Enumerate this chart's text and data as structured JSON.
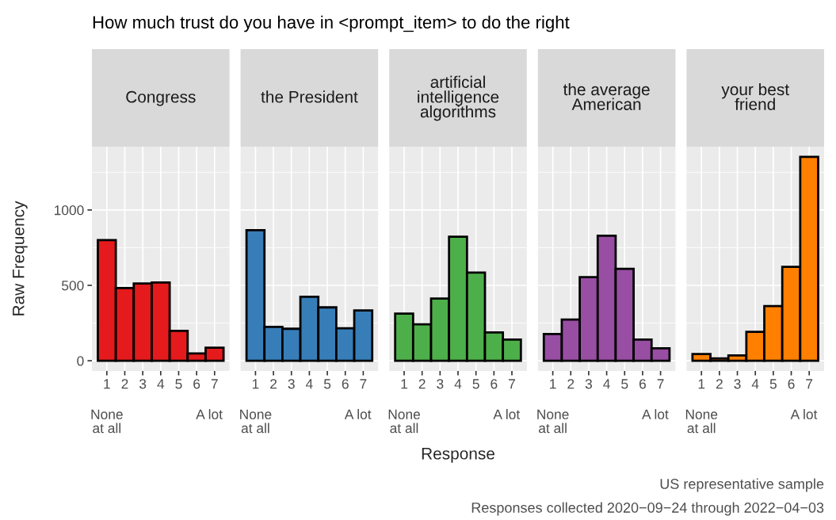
{
  "chart_data": [
    {
      "type": "bar",
      "subtitle": "How much trust do you have in <prompt_item> to do the right",
      "title": "Congress",
      "ylabel": "Raw Frequency",
      "categories": [
        "1",
        "2",
        "3",
        "4",
        "5",
        "6",
        "7"
      ],
      "values": [
        800,
        482,
        512,
        519,
        198,
        48,
        86
      ],
      "color": "#e41a1c",
      "ylim": [
        -68,
        1420
      ],
      "yticks": [
        0,
        500,
        1000
      ],
      "grid": true,
      "annotations": [
        "None\nat all",
        "A lot"
      ]
    },
    {
      "type": "bar",
      "title": "the President",
      "categories": [
        "1",
        "2",
        "3",
        "4",
        "5",
        "6",
        "7"
      ],
      "values": [
        866,
        225,
        212,
        424,
        354,
        215,
        333
      ],
      "color": "#377eb8",
      "ylim": [
        -68,
        1420
      ],
      "yticks": [
        0,
        500,
        1000
      ],
      "grid": true,
      "tick_labels": "x",
      "annotations": [
        "None\nat all",
        "A lot"
      ]
    },
    {
      "type": "bar",
      "title": "artificial\nintelligence\nalgorithms",
      "xlabel": "Response",
      "categories": [
        "1",
        "2",
        "3",
        "4",
        "5",
        "6",
        "7"
      ],
      "values": [
        313,
        242,
        412,
        823,
        585,
        188,
        140
      ],
      "color": "#4daf4a",
      "ylim": [
        -68,
        1420
      ],
      "yticks": [
        0,
        500,
        1000
      ],
      "grid": true,
      "tick_labels": "x",
      "annotations": [
        "None\nat all",
        "A lot"
      ]
    },
    {
      "type": "bar",
      "title": "the average\nAmerican",
      "categories": [
        "1",
        "2",
        "3",
        "4",
        "5",
        "6",
        "7"
      ],
      "values": [
        177,
        273,
        554,
        829,
        610,
        140,
        83
      ],
      "color": "#984ea3",
      "ylim": [
        -68,
        1420
      ],
      "yticks": [
        0,
        500,
        1000
      ],
      "grid": true,
      "tick_labels": "x",
      "annotations": [
        "None\nat all",
        "A lot"
      ]
    },
    {
      "type": "bar",
      "title": "your best\nfriend",
      "categories": [
        "1",
        "2",
        "3",
        "4",
        "5",
        "6",
        "7"
      ],
      "values": [
        44,
        15,
        35,
        192,
        362,
        623,
        1352
      ],
      "color": "#ff7f00",
      "ylim": [
        -68,
        1420
      ],
      "yticks": [
        0,
        500,
        1000
      ],
      "grid": true,
      "tick_labels": "x",
      "annotations": [
        "None\nat all",
        "A lot",
        "US representative sample",
        "Responses collected 2020−09−24 through 2022−04−03"
      ]
    }
  ]
}
